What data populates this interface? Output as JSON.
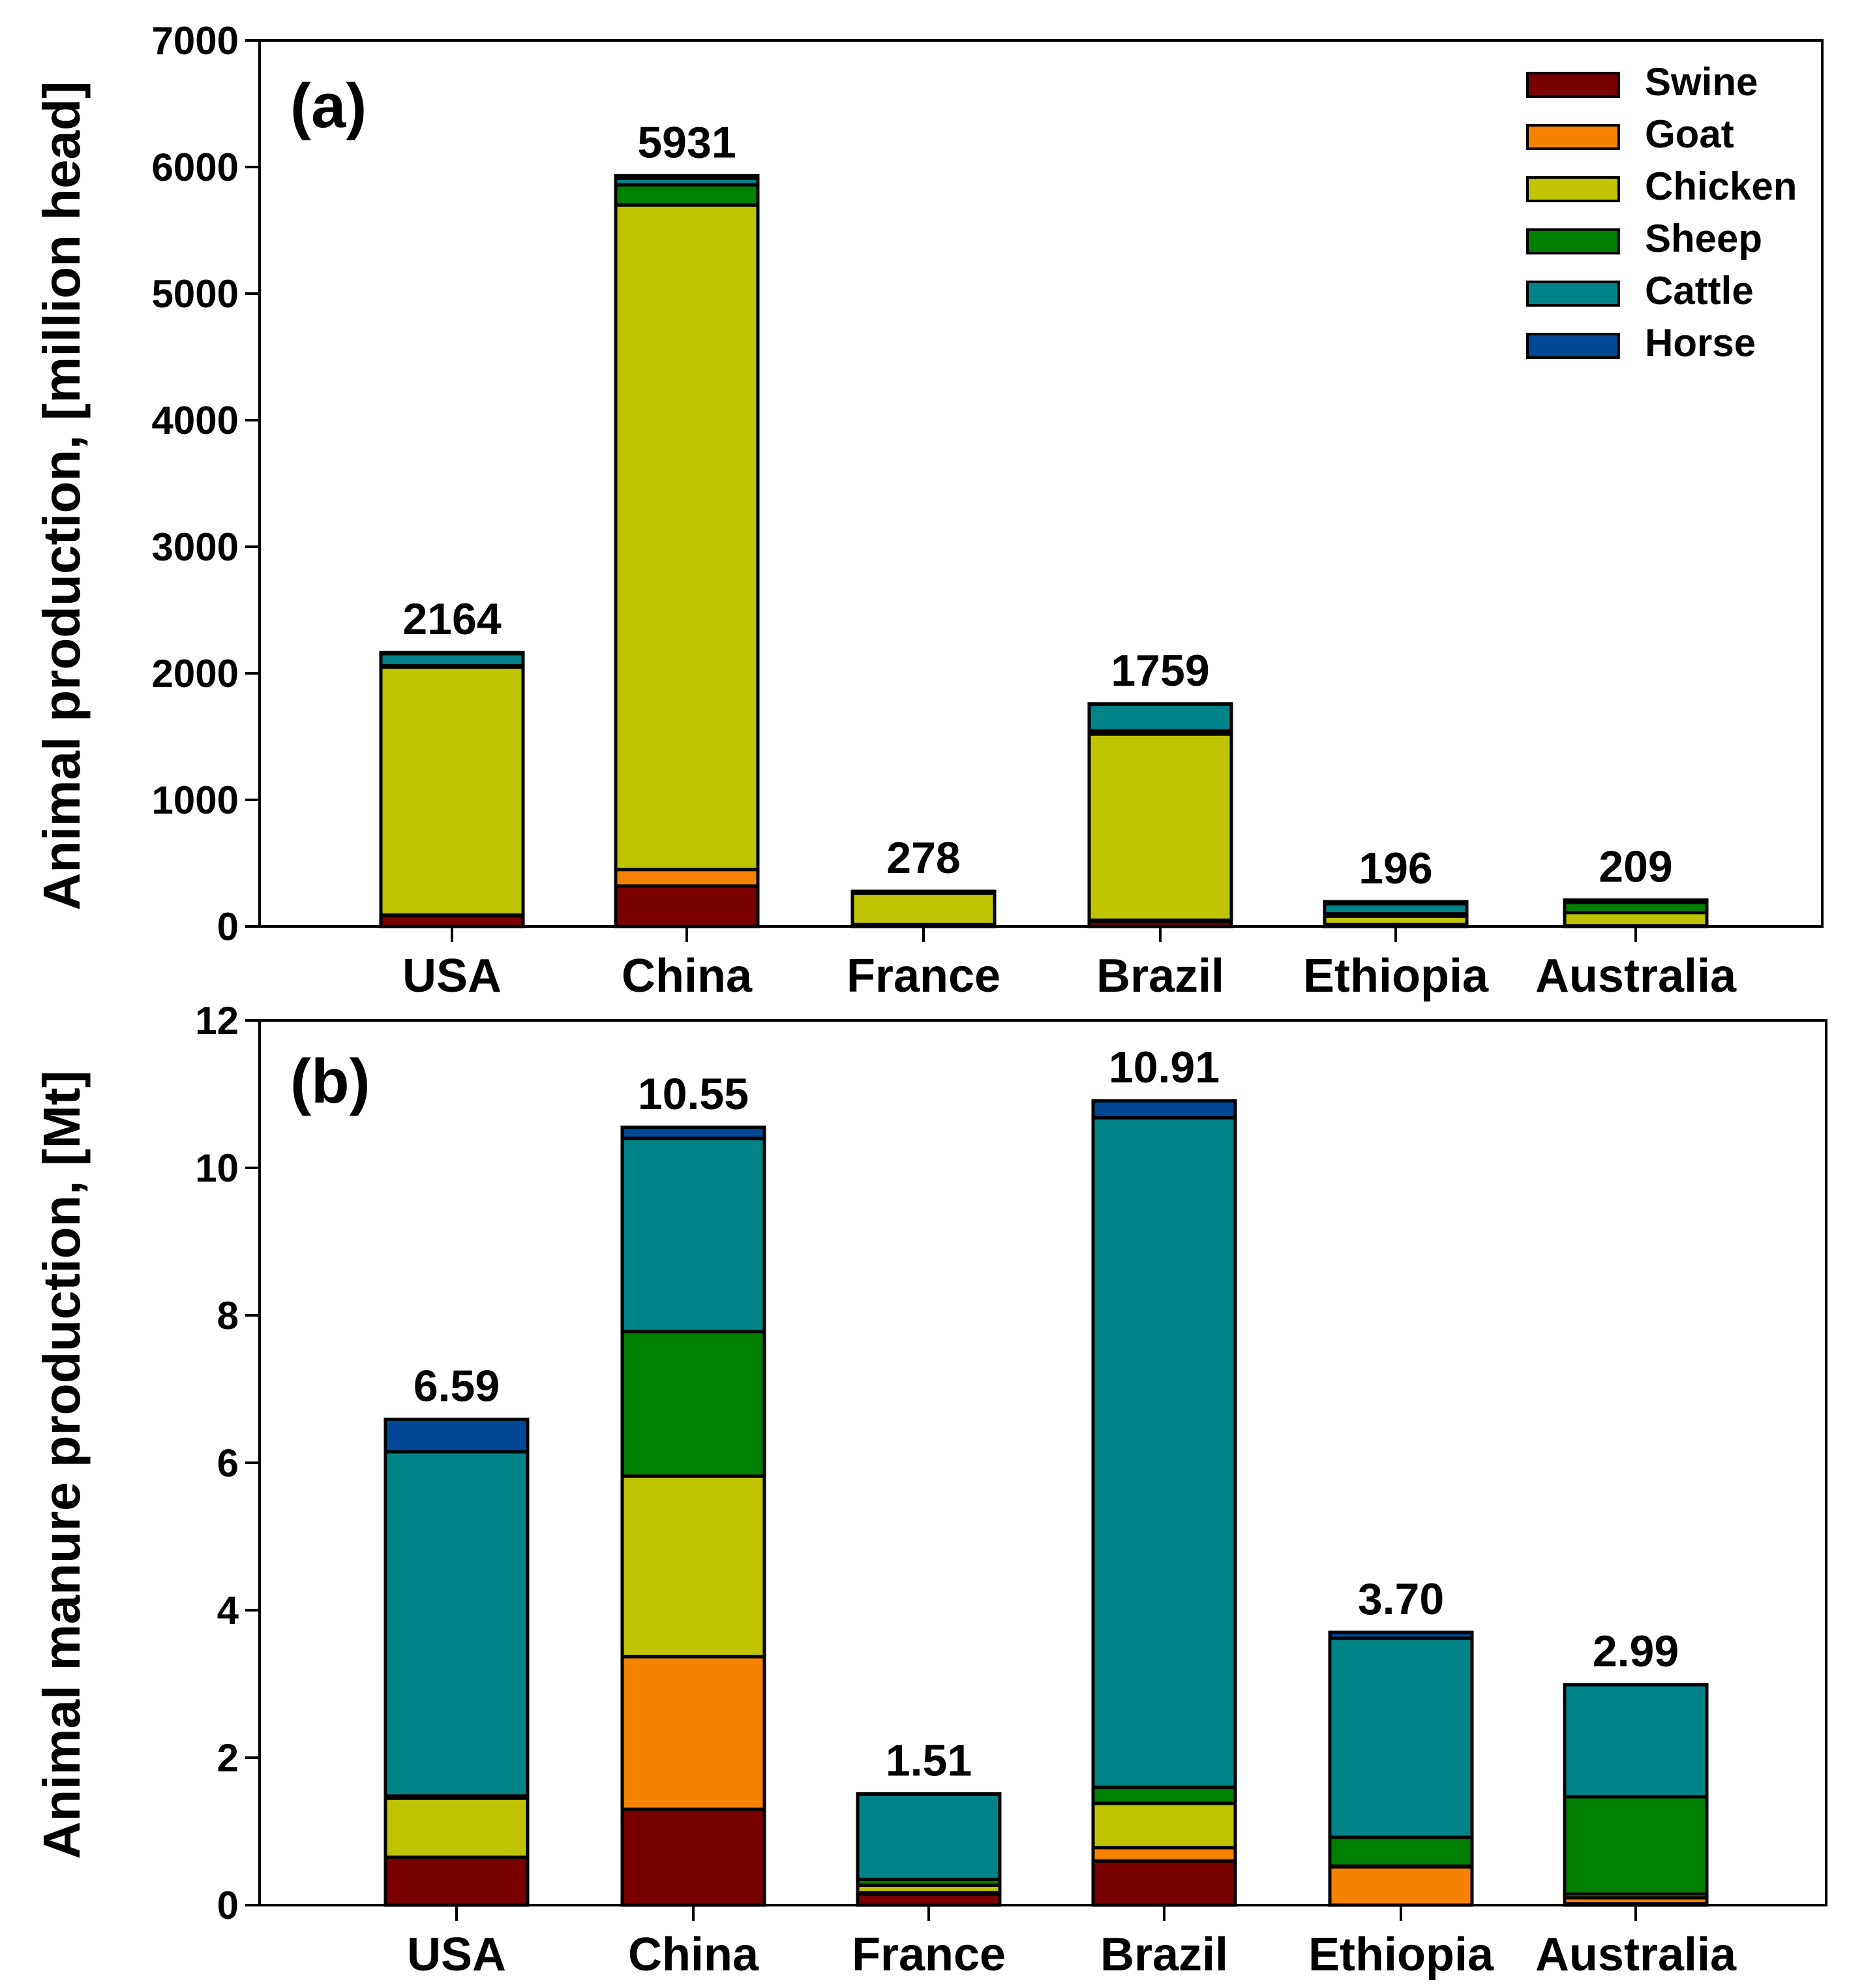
{
  "legend": [
    "Swine",
    "Goat",
    "Chicken",
    "Sheep",
    "Cattle",
    "Horse"
  ],
  "colors": {
    "Swine": "#7a0000",
    "Goat": "#f58300",
    "Chicken": "#bec400",
    "Sheep": "#008000",
    "Cattle": "#00848a",
    "Horse": "#004896"
  },
  "chart_data": [
    {
      "type": "bar",
      "stacked": true,
      "panel_label": "(a)",
      "ylabel": "Animal production, [million head]",
      "ylim": [
        0,
        7000
      ],
      "yticks": [
        0,
        1000,
        2000,
        3000,
        4000,
        5000,
        6000,
        7000
      ],
      "categories": [
        "USA",
        "China",
        "France",
        "Brazil",
        "Ethiopia",
        "Australia"
      ],
      "totals": [
        "2164",
        "5931",
        "278",
        "1759",
        "196",
        "209"
      ],
      "legend_position": "top-right",
      "series": [
        {
          "name": "Swine",
          "values": [
            85,
            320,
            15,
            40,
            0,
            3
          ]
        },
        {
          "name": "Goat",
          "values": [
            5,
            130,
            0,
            10,
            15,
            3
          ]
        },
        {
          "name": "Chicken",
          "values": [
            1960,
            5250,
            247,
            1470,
            65,
            104
          ]
        },
        {
          "name": "Sheep",
          "values": [
            10,
            160,
            8,
            25,
            20,
            80
          ]
        },
        {
          "name": "Cattle",
          "values": [
            95,
            50,
            8,
            210,
            80,
            17
          ]
        },
        {
          "name": "Horse",
          "values": [
            9,
            21,
            0,
            4,
            16,
            2
          ]
        }
      ]
    },
    {
      "type": "bar",
      "stacked": true,
      "panel_label": "(b)",
      "ylabel": "Animal manure production, [Mt]",
      "ylim": [
        0,
        12
      ],
      "yticks": [
        0,
        2,
        4,
        6,
        8,
        10,
        12
      ],
      "categories": [
        "USA",
        "China",
        "France",
        "Brazil",
        "Ethiopia",
        "Australia"
      ],
      "totals": [
        "6.59",
        "10.55",
        "1.51",
        "10.91",
        "3.70",
        "2.99"
      ],
      "series": [
        {
          "name": "Swine",
          "values": [
            0.65,
            1.3,
            0.15,
            0.6,
            0,
            0.02
          ]
        },
        {
          "name": "Goat",
          "values": [
            0,
            2.07,
            0.02,
            0.18,
            0.52,
            0.08
          ]
        },
        {
          "name": "Chicken",
          "values": [
            0.8,
            2.45,
            0.1,
            0.6,
            0.01,
            0.05
          ]
        },
        {
          "name": "Sheep",
          "values": [
            0.03,
            1.96,
            0.08,
            0.22,
            0.39,
            1.32
          ]
        },
        {
          "name": "Cattle",
          "values": [
            4.67,
            2.62,
            1.15,
            9.08,
            2.7,
            1.52
          ]
        },
        {
          "name": "Horse",
          "values": [
            0.44,
            0.15,
            0.01,
            0.23,
            0.08,
            0
          ]
        }
      ]
    }
  ]
}
